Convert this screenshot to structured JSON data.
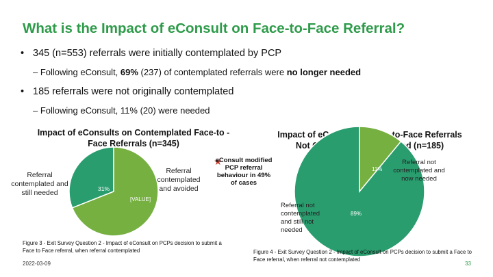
{
  "slide": {
    "title": "What is the Impact of eConsult on Face-to-Face Referral?",
    "bullet1": "345 (n=553) referrals were initially contemplated by PCP",
    "sub1_prefix": "– Following eConsult, ",
    "sub1_bold": "69%",
    "sub1_mid": " (237) of contemplated referrals were ",
    "sub1_bold2": "no longer needed",
    "bullet2": "185 referrals were not originally contemplated",
    "sub2": "– Following eConsult, 11% (20) were needed",
    "date": "2022-03-09",
    "page_number": "33",
    "annotation": "eConsult modified PCP referral behaviour in 49% of cases"
  },
  "left_chart": {
    "title": "Impact of eConsults on Contemplated Face-to -Face Referrals (n=345)",
    "label_left": "Referral contemplated and still needed",
    "label_right": "Referral contemplated and avoided",
    "pct_small": "31%",
    "pct_large": "[VALUE]",
    "caption": "Figure 3 - Exit Survey Question 2 - Impact of eConsult on PCPs decision to submit a Face to Face referral, when referral contemplated"
  },
  "right_chart": {
    "title": "Impact of eConsult on Face-to-Face Referrals Not Originally Contemplated (n=185)",
    "label_top": "Referral not contemplated and now needed",
    "label_bottom": "Referral not contemplated and still not needed",
    "pct_small": "11%",
    "pct_large": "89%",
    "caption": "Figure 4 - Exit Survey Question 2 - Impact of eConsult on PCPs decision to submit a Face to Face referral, when referral not contemplated"
  },
  "chart_data": [
    {
      "type": "pie",
      "title": "Impact of eConsults on Contemplated Face-to -Face Referrals (n=345)",
      "labels": [
        "Referral contemplated and still needed",
        "Referral contemplated and avoided"
      ],
      "values": [
        31,
        69
      ],
      "colors": [
        "#2a9d6f",
        "#76b041"
      ]
    },
    {
      "type": "pie",
      "title": "Impact of eConsult on Face-to-Face Referrals Not Originally Contemplated (n=185)",
      "labels": [
        "Referral not contemplated and now needed",
        "Referral not contemplated and still not needed"
      ],
      "values": [
        11,
        89
      ],
      "colors": [
        "#76b041",
        "#2a9d6f"
      ]
    }
  ],
  "colors": {
    "title": "#2e9b4a",
    "teal": "#2a9d6f",
    "green": "#76b041",
    "star": "#c0392b"
  }
}
